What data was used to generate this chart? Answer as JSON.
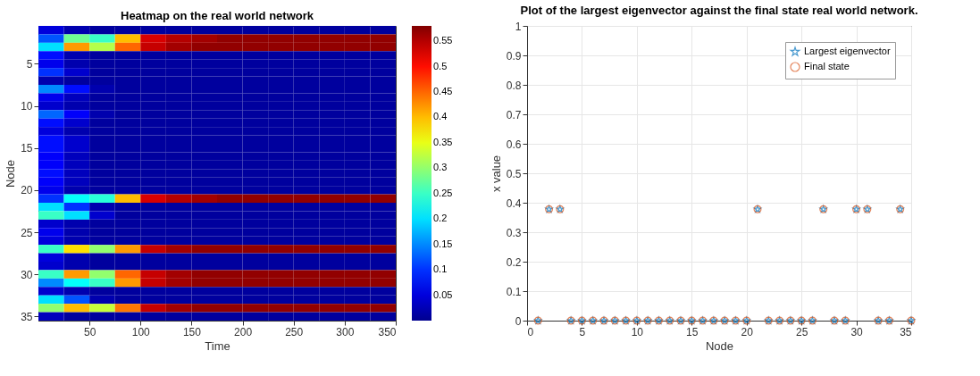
{
  "chart_data": [
    {
      "type": "heatmap",
      "title": "Heatmap on the real world network",
      "xlabel": "Time",
      "ylabel": "Node",
      "x": [
        12.5,
        37.5,
        62.5,
        87.5,
        112.5,
        137.5,
        162.5,
        187.5,
        212.5,
        237.5,
        262.5,
        287.5,
        312.5,
        337.5
      ],
      "xlim": [
        0,
        350
      ],
      "xticks": [
        50,
        100,
        150,
        200,
        250,
        300,
        350
      ],
      "y_categories": [
        null,
        null,
        null,
        null,
        "5",
        null,
        null,
        null,
        null,
        "10",
        null,
        null,
        null,
        null,
        "15",
        null,
        null,
        null,
        null,
        "20",
        null,
        null,
        null,
        null,
        "25",
        null,
        null,
        null,
        null,
        "30",
        null,
        null,
        null,
        null,
        "35"
      ],
      "clim": [
        0,
        0.58
      ],
      "cticks": [
        0.05,
        0.1,
        0.15,
        0.2,
        0.25,
        0.3,
        0.35,
        0.4,
        0.45,
        0.5,
        0.55
      ],
      "cells": [
        [
          0.05,
          0.02,
          0.01,
          0.01,
          0.01,
          0.01,
          0.01,
          0.01,
          0.01,
          0.01,
          0.01,
          0.01,
          0.01,
          0.01
        ],
        [
          0.12,
          0.28,
          0.25,
          0.4,
          0.53,
          0.55,
          0.56,
          0.57,
          0.57,
          0.57,
          0.57,
          0.57,
          0.57,
          0.57
        ],
        [
          0.2,
          0.42,
          0.32,
          0.45,
          0.54,
          0.56,
          0.57,
          0.57,
          0.57,
          0.57,
          0.57,
          0.57,
          0.57,
          0.57
        ],
        [
          0.08,
          0.02,
          0.01,
          0.01,
          0.01,
          0.01,
          0.01,
          0.01,
          0.01,
          0.01,
          0.01,
          0.01,
          0.01,
          0.01
        ],
        [
          0.06,
          0.02,
          0.01,
          0.01,
          0.01,
          0.01,
          0.01,
          0.01,
          0.01,
          0.01,
          0.01,
          0.01,
          0.01,
          0.01
        ],
        [
          0.1,
          0.04,
          0.01,
          0.01,
          0.01,
          0.01,
          0.01,
          0.01,
          0.01,
          0.01,
          0.01,
          0.01,
          0.01,
          0.01
        ],
        [
          0.02,
          0.01,
          0.01,
          0.01,
          0.01,
          0.01,
          0.01,
          0.01,
          0.01,
          0.01,
          0.01,
          0.01,
          0.01,
          0.01
        ],
        [
          0.15,
          0.08,
          0.02,
          0.01,
          0.01,
          0.01,
          0.01,
          0.01,
          0.01,
          0.01,
          0.01,
          0.01,
          0.01,
          0.01
        ],
        [
          0.06,
          0.03,
          0.01,
          0.01,
          0.01,
          0.01,
          0.01,
          0.01,
          0.01,
          0.01,
          0.01,
          0.01,
          0.01,
          0.01
        ],
        [
          0.04,
          0.02,
          0.01,
          0.01,
          0.01,
          0.01,
          0.01,
          0.01,
          0.01,
          0.01,
          0.01,
          0.01,
          0.01,
          0.01
        ],
        [
          0.13,
          0.07,
          0.02,
          0.01,
          0.01,
          0.01,
          0.01,
          0.01,
          0.01,
          0.01,
          0.01,
          0.01,
          0.01,
          0.01
        ],
        [
          0.08,
          0.04,
          0.01,
          0.01,
          0.01,
          0.01,
          0.01,
          0.01,
          0.01,
          0.01,
          0.01,
          0.01,
          0.01,
          0.01
        ],
        [
          0.05,
          0.02,
          0.01,
          0.01,
          0.01,
          0.01,
          0.01,
          0.01,
          0.01,
          0.01,
          0.01,
          0.01,
          0.01,
          0.01
        ],
        [
          0.08,
          0.04,
          0.01,
          0.01,
          0.01,
          0.01,
          0.01,
          0.01,
          0.01,
          0.01,
          0.01,
          0.01,
          0.01,
          0.01
        ],
        [
          0.08,
          0.04,
          0.01,
          0.01,
          0.01,
          0.01,
          0.01,
          0.01,
          0.01,
          0.01,
          0.01,
          0.01,
          0.01,
          0.01
        ],
        [
          0.07,
          0.03,
          0.01,
          0.01,
          0.01,
          0.01,
          0.01,
          0.01,
          0.01,
          0.01,
          0.01,
          0.01,
          0.01,
          0.01
        ],
        [
          0.07,
          0.03,
          0.01,
          0.01,
          0.01,
          0.01,
          0.01,
          0.01,
          0.01,
          0.01,
          0.01,
          0.01,
          0.01,
          0.01
        ],
        [
          0.08,
          0.03,
          0.01,
          0.01,
          0.01,
          0.01,
          0.01,
          0.01,
          0.01,
          0.01,
          0.01,
          0.01,
          0.01,
          0.01
        ],
        [
          0.07,
          0.03,
          0.01,
          0.01,
          0.01,
          0.01,
          0.01,
          0.01,
          0.01,
          0.01,
          0.01,
          0.01,
          0.01,
          0.01
        ],
        [
          0.06,
          0.02,
          0.01,
          0.01,
          0.01,
          0.01,
          0.01,
          0.01,
          0.01,
          0.01,
          0.01,
          0.01,
          0.01,
          0.01
        ],
        [
          0.1,
          0.22,
          0.24,
          0.4,
          0.53,
          0.55,
          0.56,
          0.57,
          0.57,
          0.57,
          0.57,
          0.57,
          0.57,
          0.57
        ],
        [
          0.2,
          0.1,
          0.02,
          0.01,
          0.01,
          0.01,
          0.01,
          0.01,
          0.01,
          0.01,
          0.01,
          0.01,
          0.01,
          0.01
        ],
        [
          0.25,
          0.2,
          0.04,
          0.01,
          0.01,
          0.01,
          0.01,
          0.01,
          0.01,
          0.01,
          0.01,
          0.01,
          0.01,
          0.01
        ],
        [
          0.04,
          0.02,
          0.01,
          0.01,
          0.01,
          0.01,
          0.01,
          0.01,
          0.01,
          0.01,
          0.01,
          0.01,
          0.01,
          0.01
        ],
        [
          0.06,
          0.02,
          0.01,
          0.01,
          0.01,
          0.01,
          0.01,
          0.01,
          0.01,
          0.01,
          0.01,
          0.01,
          0.01,
          0.01
        ],
        [
          0.05,
          0.02,
          0.01,
          0.01,
          0.01,
          0.01,
          0.01,
          0.01,
          0.01,
          0.01,
          0.01,
          0.01,
          0.01,
          0.01
        ],
        [
          0.25,
          0.38,
          0.3,
          0.42,
          0.54,
          0.56,
          0.57,
          0.57,
          0.57,
          0.57,
          0.57,
          0.57,
          0.57,
          0.57
        ],
        [
          0.05,
          0.02,
          0.01,
          0.01,
          0.01,
          0.01,
          0.01,
          0.01,
          0.01,
          0.01,
          0.01,
          0.01,
          0.01,
          0.01
        ],
        [
          0.04,
          0.02,
          0.01,
          0.01,
          0.01,
          0.01,
          0.01,
          0.01,
          0.01,
          0.01,
          0.01,
          0.01,
          0.01,
          0.01
        ],
        [
          0.25,
          0.42,
          0.3,
          0.45,
          0.54,
          0.56,
          0.57,
          0.57,
          0.57,
          0.57,
          0.57,
          0.57,
          0.57,
          0.57
        ],
        [
          0.15,
          0.22,
          0.25,
          0.42,
          0.54,
          0.56,
          0.57,
          0.57,
          0.57,
          0.57,
          0.57,
          0.57,
          0.57,
          0.57
        ],
        [
          0.04,
          0.02,
          0.01,
          0.01,
          0.01,
          0.01,
          0.01,
          0.01,
          0.01,
          0.01,
          0.01,
          0.01,
          0.01,
          0.01
        ],
        [
          0.2,
          0.12,
          0.02,
          0.01,
          0.01,
          0.01,
          0.01,
          0.01,
          0.01,
          0.01,
          0.01,
          0.01,
          0.01,
          0.01
        ],
        [
          0.3,
          0.4,
          0.33,
          0.44,
          0.54,
          0.56,
          0.57,
          0.57,
          0.57,
          0.57,
          0.57,
          0.57,
          0.57,
          0.57
        ],
        [
          0.03,
          0.01,
          0.01,
          0.01,
          0.01,
          0.01,
          0.01,
          0.01,
          0.01,
          0.01,
          0.01,
          0.01,
          0.01,
          0.01
        ]
      ]
    },
    {
      "type": "scatter",
      "title": "Plot of the largest eigenvector against the final state real world network.",
      "xlabel": "Node",
      "ylabel": "x value",
      "x": [
        1,
        2,
        3,
        4,
        5,
        6,
        7,
        8,
        9,
        10,
        11,
        12,
        13,
        14,
        15,
        16,
        17,
        18,
        19,
        20,
        21,
        22,
        23,
        24,
        25,
        26,
        27,
        28,
        29,
        30,
        31,
        32,
        33,
        34,
        35
      ],
      "xlim": [
        0,
        35
      ],
      "xticks": [
        0,
        5,
        10,
        15,
        20,
        25,
        30,
        35
      ],
      "ylim": [
        0,
        1
      ],
      "yticks": [
        0,
        0.1,
        0.2,
        0.3,
        0.4,
        0.5,
        0.6,
        0.7,
        0.8,
        0.9,
        1
      ],
      "grid": true,
      "legend": "top right",
      "series": [
        {
          "name": "Largest eigenvector",
          "color": "#0072bd",
          "marker": "star",
          "values": [
            0,
            0.378,
            0.378,
            0,
            0,
            0,
            0,
            0,
            0,
            0,
            0,
            0,
            0,
            0,
            0,
            0,
            0,
            0,
            0,
            0,
            0.378,
            0,
            0,
            0,
            0,
            0,
            0.378,
            0,
            0,
            0.378,
            0.378,
            0,
            0,
            0.378,
            0
          ]
        },
        {
          "name": "Final state",
          "color": "#d95319",
          "marker": "circle",
          "values": [
            0,
            0.378,
            0.378,
            0,
            0,
            0,
            0,
            0,
            0,
            0,
            0,
            0,
            0,
            0,
            0,
            0,
            0,
            0,
            0,
            0,
            0.378,
            0,
            0,
            0,
            0,
            0,
            0.378,
            0,
            0,
            0.378,
            0.378,
            0,
            0,
            0.378,
            0
          ]
        }
      ]
    }
  ]
}
